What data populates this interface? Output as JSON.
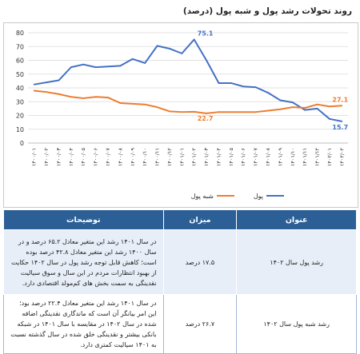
{
  "page_title": "روند تحولات رشد پول و شبه پول (درصد)",
  "chart_data": {
    "type": "line",
    "title": "روند تحولات رشد پول و شبه پول (درصد)",
    "ylim": [
      0,
      80
    ],
    "yticks": [
      0,
      10,
      20,
      30,
      40,
      50,
      60,
      70,
      80
    ],
    "grid": true,
    "legend_position": "bottom",
    "categories": [
      "۱۴۰۰/۰۱",
      "۱۴۰۰/۰۲",
      "۱۴۰۰/۰۳",
      "۱۴۰۰/۰۴",
      "۱۴۰۰/۰۵",
      "۱۴۰۰/۰۶",
      "۱۴۰۰/۰۷",
      "۱۴۰۰/۰۸",
      "۱۴۰۰/۰۹",
      "۱۴۰۰/۱۰",
      "۱۴۰۰/۱۱",
      "۱۴۰۰/۱۲",
      "۱۴۰۱/۰۱",
      "۱۴۰۱/۰۲",
      "۱۴۰۱/۰۳",
      "۱۴۰۱/۰۴",
      "۱۴۰۱/۰۵",
      "۱۴۰۱/۰۶",
      "۱۴۰۱/۰۷",
      "۱۴۰۱/۰۸",
      "۱۴۰۱/۰۹",
      "۱۴۰۱/۱۰",
      "۱۴۰۱/۱۱",
      "۱۴۰۱/۱۲",
      "۱۴۰۲/۰۱",
      "۱۴۰۲/۰۲"
    ],
    "series": [
      {
        "name": "پول",
        "color": "#4472c4",
        "values": [
          42.5,
          44,
          45.5,
          55,
          57,
          55,
          55.5,
          56,
          61,
          58,
          70.5,
          68.5,
          65,
          75.1,
          60,
          43.5,
          43.5,
          41,
          40.5,
          36.5,
          31,
          29.5,
          24,
          25,
          17.5,
          15.7
        ],
        "labels": [
          {
            "index": 13,
            "text": "75.1"
          },
          {
            "index": 25,
            "text": "15.7"
          }
        ]
      },
      {
        "name": "شبه پول",
        "color": "#ed7d31",
        "values": [
          38,
          37,
          35.5,
          33.5,
          32.5,
          33.5,
          33,
          29,
          28.5,
          28,
          26,
          23,
          22.5,
          22.7,
          21.5,
          22.5,
          22.5,
          22.5,
          22.5,
          23.5,
          24.5,
          26,
          25.5,
          28,
          26.5,
          27.1
        ],
        "labels": [
          {
            "index": 13,
            "text": "22.7"
          },
          {
            "index": 25,
            "text": "27.1"
          }
        ]
      }
    ]
  },
  "table": {
    "headers": {
      "title": "عنوان",
      "value": "میزان",
      "desc": "توضیحات"
    },
    "rows": [
      {
        "title": "رشد پول سال ۱۴۰۲",
        "value": "۱۷.۵ درصد",
        "desc": "در سال ۱۴۰۱ رشد این متغیر معادل ۶۵.۲ درصد و در سال ۱۴۰۰ رشد این متغیر معادل ۴۲.۸ درصد بوده است؛ کاهش قابل توجه رشد پول در سال ۱۴۰۲ حکایت از بهبود انتظارات مردم در این سال و سوق سیالیت نقدینگی به سمت بخش های کم‌مولد اقتصادی دارد."
      },
      {
        "title": "رشد شبه پول سال ۱۴۰۲",
        "value": "۲۶.۷ درصد",
        "desc": "در سال ۱۴۰۱ رشد این متغیر معادل ۲۲.۴ درصد بود؛ این امر بیانگر آن است که ماندگاری نقدینگی اضافه شده در سال ۱۴۰۲ در مقایسه با سال ۱۴۰۱ در شبکه بانکی بیشتر و نقدینگی خلق شده در سال گذشته نسبت به ۱۴۰۱ سیالیت کمتری دارد."
      }
    ]
  }
}
